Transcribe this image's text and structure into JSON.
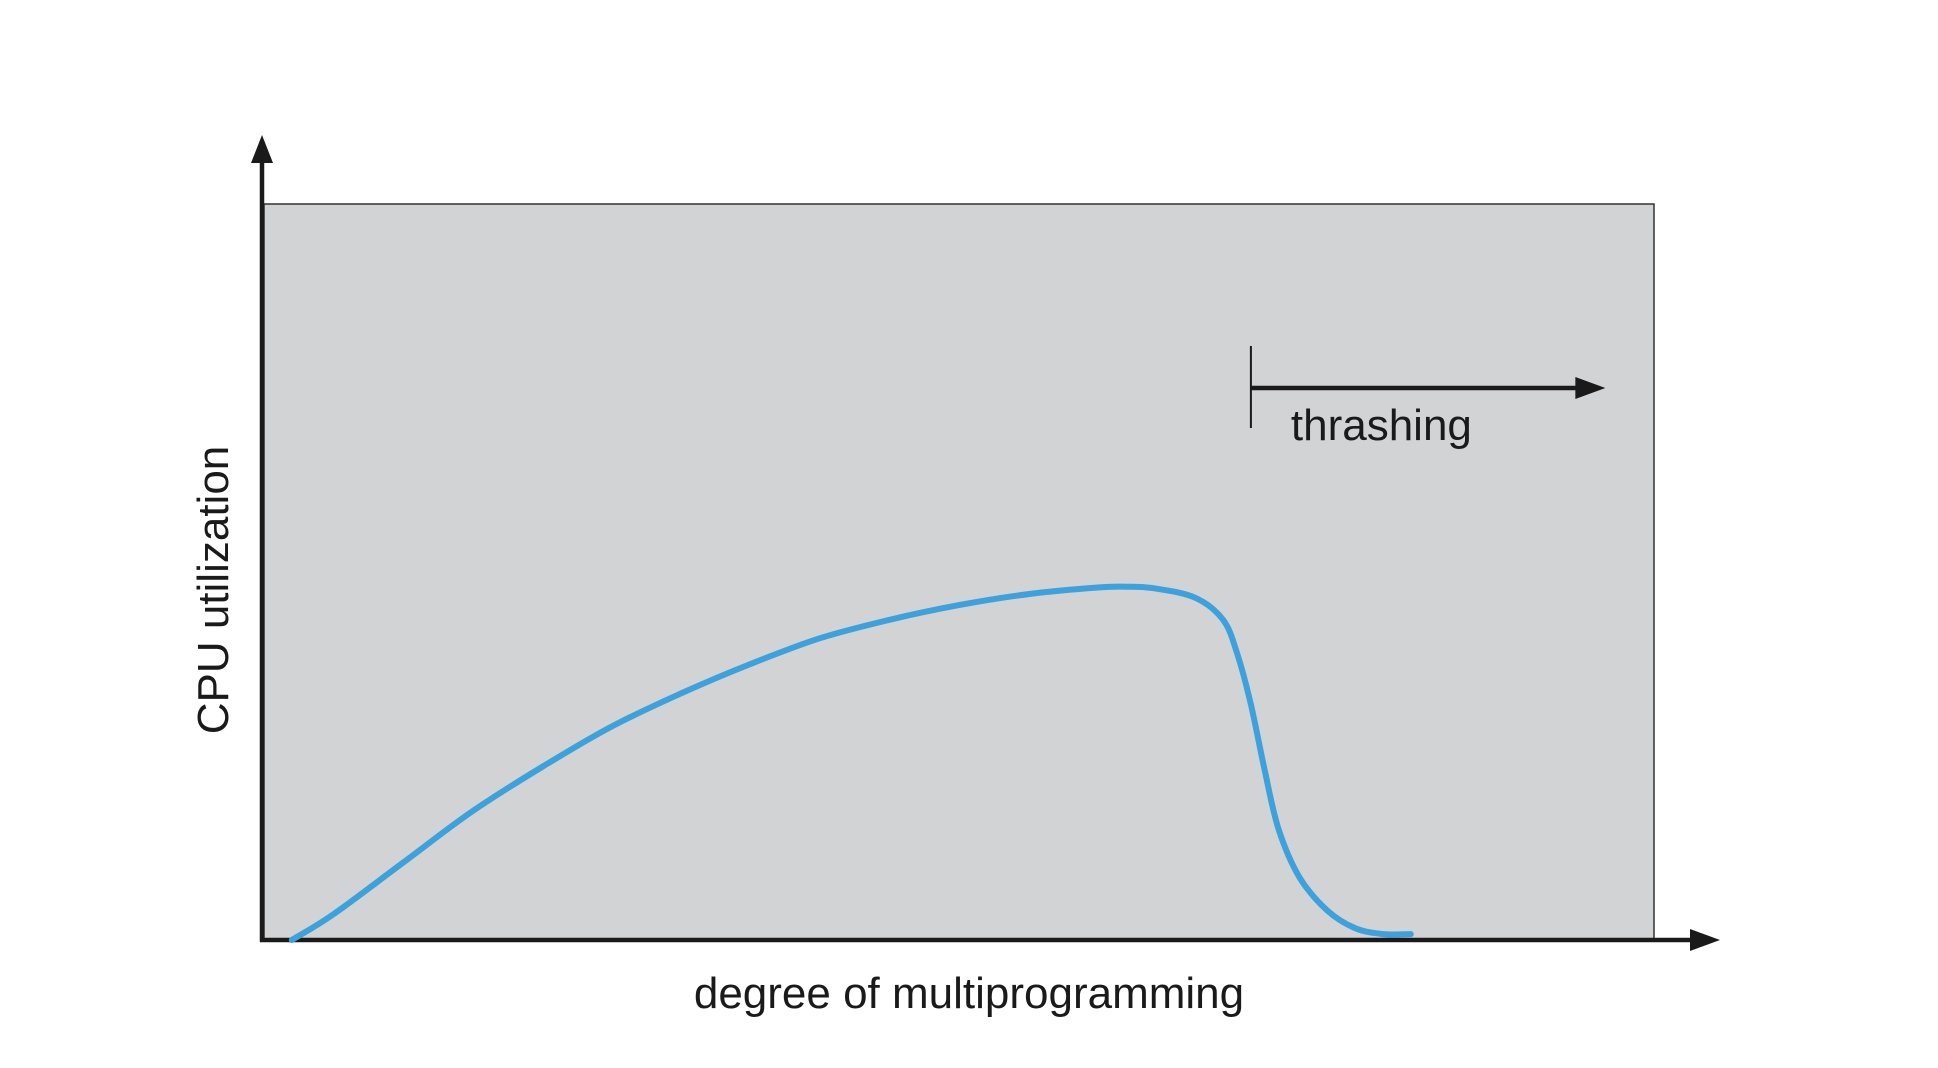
{
  "chart_data": {
    "type": "line",
    "title": "",
    "xlabel": "degree of multiprogramming",
    "ylabel": "CPU utilization",
    "xlim": [
      0,
      100
    ],
    "ylim": [
      0,
      100
    ],
    "grid": false,
    "show_tick_labels": false,
    "series": [
      {
        "color": "#3da1dc",
        "points": [
          [
            2,
            0
          ],
          [
            5,
            3.5
          ],
          [
            10,
            10.5
          ],
          [
            15,
            17.5
          ],
          [
            20,
            23.5
          ],
          [
            25,
            29
          ],
          [
            30,
            33.5
          ],
          [
            35,
            37.5
          ],
          [
            40,
            41
          ],
          [
            45,
            43.5
          ],
          [
            50,
            45.5
          ],
          [
            55,
            47
          ],
          [
            60,
            47.9
          ],
          [
            62,
            48
          ],
          [
            64,
            47.8
          ],
          [
            67,
            46.5
          ],
          [
            69,
            43.5
          ],
          [
            70,
            39
          ],
          [
            71,
            32
          ],
          [
            72,
            23
          ],
          [
            73,
            15
          ],
          [
            74.5,
            8.5
          ],
          [
            76.5,
            4
          ],
          [
            78.5,
            1.6
          ],
          [
            80.5,
            0.8
          ],
          [
            82.5,
            0.8
          ]
        ]
      }
    ],
    "annotations": [
      {
        "text": "thrashing",
        "x_start": 71,
        "x_end": 96.5,
        "y": 75
      }
    ]
  },
  "colors": {
    "plot_background": "#d2d3d5",
    "axis": "#1a1a1a",
    "curve": "#3da1dc"
  }
}
